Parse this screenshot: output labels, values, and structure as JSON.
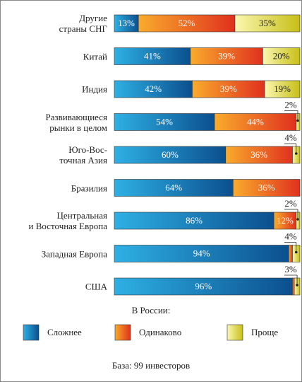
{
  "chart_data": {
    "type": "stacked-bar-horizontal",
    "categories": [
      "Другие\nстраны СНГ",
      "Китай",
      "Индия",
      "Развивающиеся\nрынки в целом",
      "Юго-Вос-\nточная Азия",
      "Бразилия",
      "Центральная\nи Восточная Европа",
      "Западная Европа",
      "США"
    ],
    "series": [
      {
        "name": "Сложнее",
        "color": "#0b4f8e",
        "values": [
          13,
          41,
          42,
          54,
          60,
          64,
          86,
          94,
          96
        ],
        "value_labels": [
          "13%",
          "41%",
          "42%",
          "54%",
          "60%",
          "64%",
          "86%",
          "94%",
          "96%"
        ]
      },
      {
        "name": "Одинаково",
        "color": "#e0311e",
        "values": [
          52,
          39,
          39,
          44,
          36,
          36,
          12,
          2,
          1
        ],
        "value_labels": [
          "52%",
          "39%",
          "39%",
          "44%",
          "36%",
          "36%",
          "12%",
          null,
          null
        ]
      },
      {
        "name": "Проще",
        "color": "#c7bf16",
        "values": [
          35,
          20,
          19,
          2,
          4,
          null,
          2,
          4,
          3
        ],
        "value_labels": [
          "35%",
          "20%",
          "19%",
          "2%",
          "4%",
          null,
          "2%",
          "4%",
          "3%"
        ]
      }
    ],
    "xlim": [
      0,
      100
    ],
    "legend_title": "В России:",
    "footnote": "База: 99 инвесторов"
  }
}
